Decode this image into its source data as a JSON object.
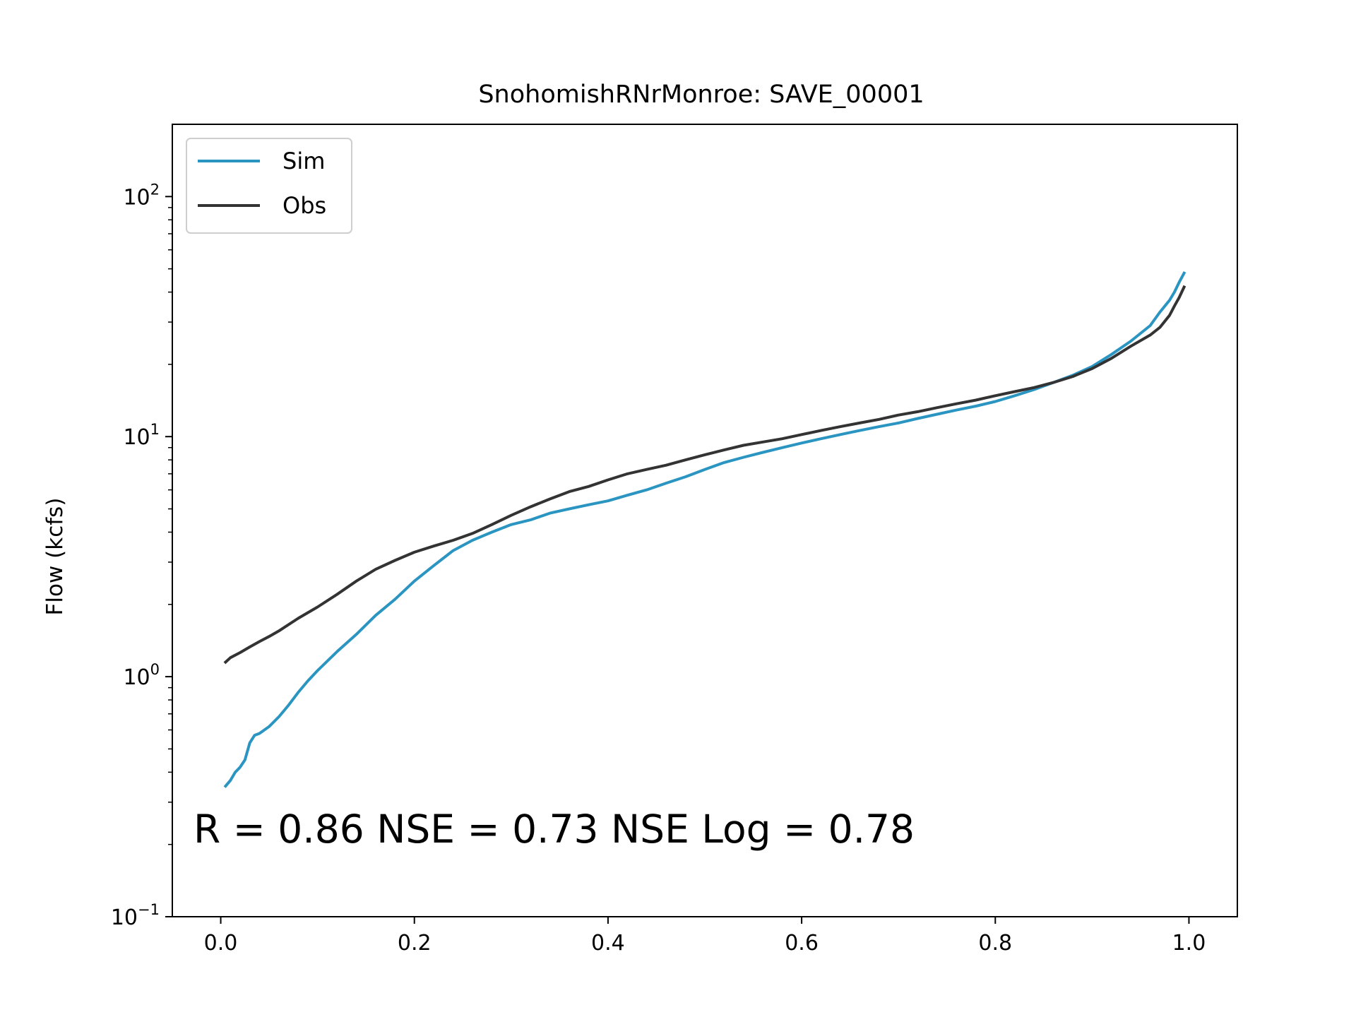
{
  "chart_data": {
    "type": "line",
    "title": "SnohomishRNrMonroe: SAVE_00001",
    "xlabel": "",
    "ylabel": "Flow (kcfs)",
    "xlim": [
      -0.05,
      1.05
    ],
    "ylim": [
      0.1,
      200
    ],
    "yscale": "log",
    "grid": false,
    "legend_position": "upper left",
    "x_ticks": [
      {
        "value": 0.0,
        "label": "0.0"
      },
      {
        "value": 0.2,
        "label": "0.2"
      },
      {
        "value": 0.4,
        "label": "0.4"
      },
      {
        "value": 0.6,
        "label": "0.6"
      },
      {
        "value": 0.8,
        "label": "0.8"
      },
      {
        "value": 1.0,
        "label": "1.0"
      }
    ],
    "y_ticks": [
      {
        "value": 0.1,
        "base": "10",
        "exp": "−1"
      },
      {
        "value": 1,
        "base": "10",
        "exp": "0"
      },
      {
        "value": 10,
        "base": "10",
        "exp": "1"
      },
      {
        "value": 100,
        "base": "10",
        "exp": "2"
      }
    ],
    "annotation": "R = 0.86  NSE = 0.73  NSE Log = 0.78",
    "series": [
      {
        "name": "Sim",
        "color": "#2b95c2",
        "x": [
          0.005,
          0.01,
          0.015,
          0.02,
          0.025,
          0.03,
          0.035,
          0.04,
          0.05,
          0.06,
          0.07,
          0.08,
          0.09,
          0.1,
          0.12,
          0.14,
          0.16,
          0.18,
          0.2,
          0.22,
          0.24,
          0.26,
          0.28,
          0.3,
          0.32,
          0.34,
          0.36,
          0.38,
          0.4,
          0.42,
          0.44,
          0.46,
          0.48,
          0.5,
          0.52,
          0.54,
          0.56,
          0.58,
          0.6,
          0.62,
          0.64,
          0.66,
          0.68,
          0.7,
          0.72,
          0.74,
          0.76,
          0.78,
          0.8,
          0.82,
          0.84,
          0.86,
          0.88,
          0.9,
          0.92,
          0.94,
          0.96,
          0.97,
          0.98,
          0.985,
          0.99,
          0.995
        ],
        "values": [
          0.35,
          0.37,
          0.4,
          0.42,
          0.45,
          0.53,
          0.57,
          0.58,
          0.62,
          0.68,
          0.76,
          0.86,
          0.96,
          1.06,
          1.27,
          1.5,
          1.8,
          2.1,
          2.5,
          2.9,
          3.35,
          3.7,
          4.0,
          4.3,
          4.5,
          4.8,
          5.0,
          5.2,
          5.4,
          5.7,
          6.0,
          6.4,
          6.8,
          7.3,
          7.8,
          8.2,
          8.6,
          9.0,
          9.4,
          9.8,
          10.2,
          10.6,
          11.0,
          11.4,
          11.9,
          12.4,
          12.9,
          13.4,
          14.0,
          14.8,
          15.7,
          16.8,
          18.0,
          19.6,
          22.0,
          25.0,
          29.0,
          33.0,
          37.0,
          40.0,
          44.0,
          48.0
        ]
      },
      {
        "name": "Obs",
        "color": "#333333",
        "x": [
          0.005,
          0.01,
          0.02,
          0.03,
          0.04,
          0.05,
          0.06,
          0.08,
          0.1,
          0.12,
          0.14,
          0.16,
          0.18,
          0.2,
          0.22,
          0.24,
          0.26,
          0.28,
          0.3,
          0.32,
          0.34,
          0.36,
          0.38,
          0.4,
          0.42,
          0.44,
          0.46,
          0.48,
          0.5,
          0.52,
          0.54,
          0.56,
          0.58,
          0.6,
          0.62,
          0.64,
          0.66,
          0.68,
          0.7,
          0.72,
          0.74,
          0.76,
          0.78,
          0.8,
          0.82,
          0.84,
          0.86,
          0.88,
          0.9,
          0.92,
          0.94,
          0.96,
          0.97,
          0.98,
          0.985,
          0.99,
          0.995
        ],
        "values": [
          1.15,
          1.2,
          1.26,
          1.33,
          1.4,
          1.47,
          1.55,
          1.75,
          1.95,
          2.2,
          2.5,
          2.8,
          3.05,
          3.3,
          3.5,
          3.7,
          3.95,
          4.3,
          4.7,
          5.1,
          5.5,
          5.9,
          6.2,
          6.6,
          7.0,
          7.3,
          7.6,
          8.0,
          8.4,
          8.8,
          9.2,
          9.5,
          9.8,
          10.2,
          10.6,
          11.0,
          11.4,
          11.8,
          12.3,
          12.7,
          13.2,
          13.7,
          14.2,
          14.8,
          15.4,
          16.0,
          16.8,
          17.8,
          19.2,
          21.2,
          23.8,
          26.5,
          28.5,
          32.0,
          35.0,
          38.0,
          42.0
        ]
      }
    ]
  }
}
